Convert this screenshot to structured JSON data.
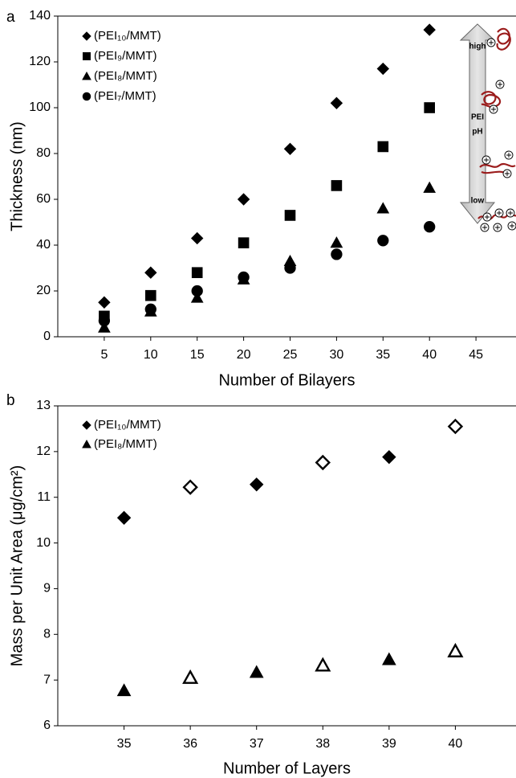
{
  "chart_data": [
    {
      "type": "scatter",
      "panel_label": "a",
      "xlabel": "Number of Bilayers",
      "ylabel": "Thickness (nm)",
      "x": [
        5,
        10,
        15,
        20,
        25,
        30,
        35,
        40
      ],
      "xlim": [
        0,
        50
      ],
      "xticks": [
        5,
        10,
        15,
        20,
        25,
        30,
        35,
        40,
        45
      ],
      "ylim": [
        0,
        140
      ],
      "yticks": [
        0,
        20,
        40,
        60,
        80,
        100,
        120,
        140
      ],
      "series": [
        {
          "name": "(PEI₁₀/MMT)",
          "color": "#000000",
          "marker": "diamond",
          "values": [
            15,
            28,
            43,
            60,
            82,
            102,
            117,
            134
          ]
        },
        {
          "name": "(PEI₉/MMT)",
          "color": "#000000",
          "marker": "square",
          "values": [
            9,
            18,
            28,
            41,
            53,
            66,
            83,
            100
          ]
        },
        {
          "name": "(PEI₈/MMT)",
          "color": "#000000",
          "marker": "triangle",
          "values": [
            4,
            11,
            17,
            25,
            33,
            41,
            56,
            65
          ]
        },
        {
          "name": "(PEI₇/MMT)",
          "color": "#000000",
          "marker": "circle",
          "values": [
            7,
            12,
            20,
            26,
            30,
            36,
            42,
            48
          ]
        }
      ],
      "annotations": [
        "high",
        "PEI",
        "pH",
        "low"
      ]
    },
    {
      "type": "scatter",
      "panel_label": "b",
      "xlabel": "Number of Layers",
      "ylabel": "Mass per Unit Area (μg/cm²)",
      "x": [
        35,
        36,
        37,
        38,
        39,
        40
      ],
      "xlim": [
        34,
        41
      ],
      "xticks": [
        35,
        36,
        37,
        38,
        39,
        40
      ],
      "ylim": [
        6,
        13
      ],
      "yticks": [
        6,
        7,
        8,
        9,
        10,
        11,
        12,
        13
      ],
      "series": [
        {
          "name": "(PEI₁₀/MMT)",
          "color": "#000000",
          "marker": "diamond",
          "values": [
            10.55,
            11.22,
            11.28,
            11.76,
            11.88,
            12.55
          ],
          "filled": [
            true,
            false,
            true,
            false,
            true,
            false
          ]
        },
        {
          "name": "(PEI₈/MMT)",
          "color": "#000000",
          "marker": "triangle",
          "values": [
            6.77,
            7.05,
            7.17,
            7.32,
            7.45,
            7.63
          ],
          "filled": [
            true,
            false,
            true,
            false,
            true,
            false
          ]
        }
      ]
    }
  ]
}
